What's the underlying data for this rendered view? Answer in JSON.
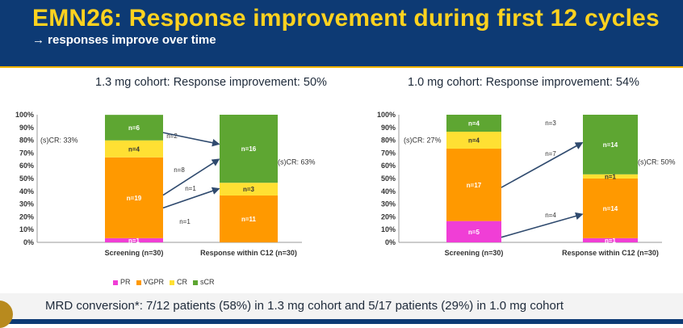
{
  "header": {
    "title": "EMN26: Response improvement during first 12 cycles",
    "subtitle": "→ responses improve over time"
  },
  "colors": {
    "PR": "#f03ed6",
    "VGPR": "#ff9900",
    "CR": "#ffe033",
    "sCR": "#5ea632",
    "header_bg": "#0d3a74",
    "title": "#ffd21f",
    "arrow": "#2f4a6e"
  },
  "legend": {
    "items": [
      {
        "label": "PR",
        "color": "#f03ed6"
      },
      {
        "label": "VGPR",
        "color": "#ff9900"
      },
      {
        "label": "CR",
        "color": "#ffe033"
      },
      {
        "label": "sCR",
        "color": "#5ea632"
      }
    ]
  },
  "footer": {
    "text": "MRD conversion*: 7/12 patients (58%) in 1.3 mg cohort and 5/17 patients (29%) in 1.0 mg cohort"
  },
  "chart_data": [
    {
      "type": "bar",
      "stacked": true,
      "title": "1.3 mg cohort: Response improvement: 50%",
      "categories": [
        "Screening (n=30)",
        "Response within C12 (n=30)"
      ],
      "ylim": [
        0,
        100
      ],
      "yticks": [
        "0%",
        "10%",
        "20%",
        "30%",
        "40%",
        "50%",
        "60%",
        "70%",
        "80%",
        "90%",
        "100%"
      ],
      "series": [
        {
          "name": "PR",
          "values": [
            3.3,
            0
          ],
          "labels": [
            "n=1",
            "n=0"
          ]
        },
        {
          "name": "VGPR",
          "values": [
            63.3,
            36.7
          ],
          "labels": [
            "n=19",
            "n=11"
          ]
        },
        {
          "name": "CR",
          "values": [
            13.3,
            10.0
          ],
          "labels": [
            "n=4",
            "n=3"
          ]
        },
        {
          "name": "sCR",
          "values": [
            20.0,
            53.3
          ],
          "labels": [
            "n=6",
            "n=16"
          ]
        }
      ],
      "annotations": [
        {
          "text": "(s)CR: 33%",
          "side": "left"
        },
        {
          "text": "(s)CR: 63%",
          "side": "right"
        }
      ],
      "transitions": [
        {
          "label": "n=2",
          "from": 86,
          "to": 77
        },
        {
          "label": "n=8",
          "from": 37,
          "to": 65
        },
        {
          "label": "n=1",
          "from": 27,
          "to": 42
        },
        {
          "label": "n=1",
          "from": null,
          "to": null
        }
      ]
    },
    {
      "type": "bar",
      "stacked": true,
      "title": "1.0 mg cohort: Response improvement: 54%",
      "categories": [
        "Screening (n=30)",
        "Response within C12 (n=30)"
      ],
      "ylim": [
        0,
        100
      ],
      "yticks": [
        "0%",
        "10%",
        "20%",
        "30%",
        "40%",
        "50%",
        "60%",
        "70%",
        "80%",
        "90%",
        "100%"
      ],
      "series": [
        {
          "name": "PR",
          "values": [
            16.7,
            3.3
          ],
          "labels": [
            "n=5",
            "n=1"
          ]
        },
        {
          "name": "VGPR",
          "values": [
            56.7,
            46.7
          ],
          "labels": [
            "n=17",
            "n=14"
          ]
        },
        {
          "name": "CR",
          "values": [
            13.3,
            3.3
          ],
          "labels": [
            "n=4",
            "n=1"
          ]
        },
        {
          "name": "sCR",
          "values": [
            13.3,
            46.7
          ],
          "labels": [
            "n=4",
            "n=14"
          ]
        }
      ],
      "annotations": [
        {
          "text": "(s)CR: 27%",
          "side": "left"
        },
        {
          "text": "(s)CR: 50%",
          "side": "right"
        }
      ],
      "transitions": [
        {
          "label": "n=3",
          "from": null,
          "to": null
        },
        {
          "label": "n=7",
          "from": 43,
          "to": 78
        },
        {
          "label": "n=4",
          "from": 4,
          "to": 22
        }
      ]
    }
  ]
}
